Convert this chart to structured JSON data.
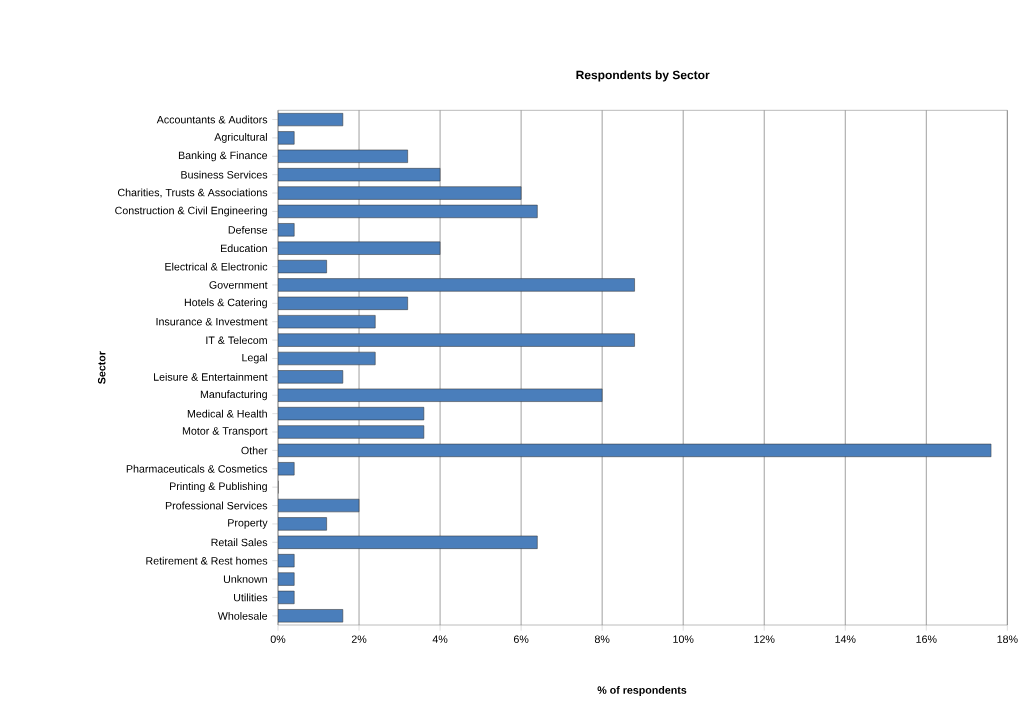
{
  "chart_data": {
    "type": "bar",
    "orientation": "horizontal",
    "title": "Respondents by Sector",
    "xlabel": "% of respondents",
    "ylabel": "Sector",
    "categories": [
      "Accountants & Auditors",
      "Agricultural",
      "Banking & Finance",
      "Business Services",
      "Charities, Trusts & Associations",
      "Construction & Civil Engineering",
      "Defense",
      "Education",
      "Electrical & Electronic",
      "Government",
      "Hotels & Catering",
      "Insurance & Investment",
      "IT & Telecom",
      "Legal",
      "Leisure & Entertainment",
      "Manufacturing",
      "Medical & Health",
      "Motor & Transport",
      "Other",
      "Pharmaceuticals & Cosmetics",
      "Printing & Publishing",
      "Professional Services",
      "Property",
      "Retail Sales",
      "Retirement & Rest homes",
      "Unknown",
      "Utilities",
      "Wholesale"
    ],
    "values": [
      1.6,
      0.4,
      3.2,
      4.0,
      6.0,
      6.4,
      0.4,
      4.0,
      1.2,
      8.8,
      3.2,
      2.4,
      8.8,
      2.4,
      1.6,
      8.0,
      3.6,
      3.6,
      17.6,
      0.4,
      0,
      2.0,
      1.2,
      6.4,
      0.4,
      0.4,
      0.4,
      1.6
    ],
    "color": "#4a7ebb",
    "xlim": [
      0,
      18
    ],
    "xticks": [
      {
        "value": 0,
        "label": "0%"
      },
      {
        "value": 2,
        "label": "2%"
      },
      {
        "value": 4,
        "label": "4%"
      },
      {
        "value": 6,
        "label": "6%"
      },
      {
        "value": 8,
        "label": "8%"
      },
      {
        "value": 10,
        "label": "10%"
      },
      {
        "value": 12,
        "label": "12%"
      },
      {
        "value": 14,
        "label": "14%"
      },
      {
        "value": 16,
        "label": "16%"
      },
      {
        "value": 18,
        "label": "18%"
      }
    ],
    "grid": "x"
  }
}
